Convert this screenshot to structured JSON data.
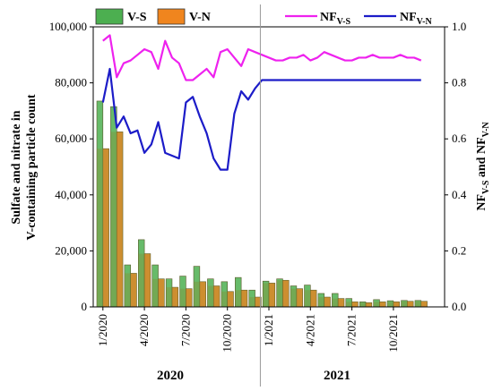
{
  "chart_data": {
    "type": "bar",
    "categories": [
      "1/2020",
      "2/2020",
      "3/2020",
      "4/2020",
      "5/2020",
      "6/2020",
      "7/2020",
      "8/2020",
      "9/2020",
      "10/2020",
      "11/2020",
      "12/2020",
      "1/2021",
      "2/2021",
      "3/2021",
      "4/2021",
      "5/2021",
      "6/2021",
      "7/2021",
      "8/2021",
      "9/2021",
      "10/2021",
      "11/2021",
      "12/2021"
    ],
    "x_tick_labels": [
      "1/2020",
      "4/2020",
      "7/2020",
      "10/2020",
      "1/2021",
      "4/2021",
      "7/2021",
      "10/2021"
    ],
    "x_tick_indices": [
      0,
      3,
      6,
      9,
      12,
      15,
      18,
      21
    ],
    "year_labels": [
      "2020",
      "2021"
    ],
    "ylabel_lines": [
      "Sulfate and nitrate in",
      "V-containing particle count"
    ],
    "y2label": {
      "main": "NF",
      "sub1": "V-S",
      "mid": " and NF",
      "sub2": "V-N"
    },
    "ylim": [
      0,
      100000
    ],
    "y_ticks": [
      "0",
      "20,000",
      "40,000",
      "60,000",
      "80,000",
      "100,000"
    ],
    "y2lim": [
      0,
      1.0
    ],
    "y2_ticks": [
      "0.0",
      "0.2",
      "0.4",
      "0.6",
      "0.8",
      "1.0"
    ],
    "series": [
      {
        "name": "V-S",
        "kind": "bar",
        "color": "#4caf50",
        "values": [
          73500,
          71500,
          15000,
          24000,
          15000,
          10000,
          11000,
          14500,
          10000,
          9000,
          10500,
          6000,
          9200,
          10000,
          7500,
          7800,
          4800,
          4800,
          3000,
          1800,
          2600,
          2200,
          2300,
          2300
        ]
      },
      {
        "name": "V-N",
        "kind": "bar",
        "color": "#f0851e",
        "values": [
          56500,
          62500,
          12000,
          19000,
          10000,
          7000,
          6500,
          9000,
          7500,
          5500,
          6000,
          3500,
          8500,
          9500,
          6500,
          6000,
          3500,
          3000,
          1800,
          1500,
          1800,
          1800,
          2000,
          2000
        ]
      },
      {
        "name": "NF",
        "sub": "V-S",
        "kind": "line",
        "axis": "right",
        "color": "#ee22ee",
        "x": [
          0,
          0.5,
          1,
          1.5,
          2,
          2.5,
          3,
          3.5,
          4,
          4.5,
          5,
          5.5,
          6,
          6.5,
          7,
          7.5,
          8,
          8.5,
          9,
          9.5,
          10,
          10.5,
          11,
          11.5,
          12,
          12.5,
          13,
          13.5,
          14,
          14.5,
          15,
          15.5,
          16,
          16.5,
          17,
          17.5,
          18,
          18.5,
          19,
          19.5,
          20,
          20.5,
          21,
          21.5,
          22,
          22.5,
          23
        ],
        "values": [
          0.95,
          0.97,
          0.82,
          0.87,
          0.88,
          0.9,
          0.92,
          0.91,
          0.85,
          0.95,
          0.89,
          0.87,
          0.81,
          0.81,
          0.83,
          0.85,
          0.82,
          0.91,
          0.92,
          0.89,
          0.86,
          0.92,
          0.91,
          0.9,
          0.89,
          0.88,
          0.88,
          0.89,
          0.89,
          0.9,
          0.88,
          0.89,
          0.91,
          0.9,
          0.89,
          0.88,
          0.88,
          0.89,
          0.89,
          0.9,
          0.89,
          0.89,
          0.89,
          0.9,
          0.89,
          0.89,
          0.88
        ]
      },
      {
        "name": "NF",
        "sub": "V-N",
        "kind": "line",
        "axis": "right",
        "color": "#1c1cc8",
        "x": [
          0,
          0.5,
          1,
          1.5,
          2,
          2.5,
          3,
          3.5,
          4,
          4.5,
          5,
          5.5,
          6,
          6.5,
          7,
          7.5,
          8,
          8.5,
          9,
          9.5,
          10,
          10.5,
          11,
          11.5,
          12,
          12.5,
          13,
          13.5,
          14,
          14.5,
          15,
          15.5,
          16,
          16.5,
          17,
          17.5,
          18,
          18.5,
          19,
          19.5,
          20,
          20.5,
          21,
          21.5,
          22,
          22.5,
          23
        ],
        "values": [
          0.73,
          0.85,
          0.64,
          0.68,
          0.62,
          0.63,
          0.55,
          0.58,
          0.66,
          0.55,
          0.54,
          0.53,
          0.73,
          0.75,
          0.68,
          0.62,
          0.53,
          0.49,
          0.49,
          0.69,
          0.77,
          0.74,
          0.78,
          0.81,
          0.81,
          0.81,
          0.81,
          0.81,
          0.81,
          0.81,
          0.81,
          0.81,
          0.81,
          0.81,
          0.81,
          0.81,
          0.81,
          0.81,
          0.81,
          0.81,
          0.81,
          0.81,
          0.81,
          0.81,
          0.81,
          0.81,
          0.81
        ]
      }
    ],
    "legend": {
      "left": [
        "V-S",
        "V-N"
      ],
      "right_main": "NF",
      "right_subs": [
        "V-S",
        "V-N"
      ]
    },
    "grid": false
  }
}
